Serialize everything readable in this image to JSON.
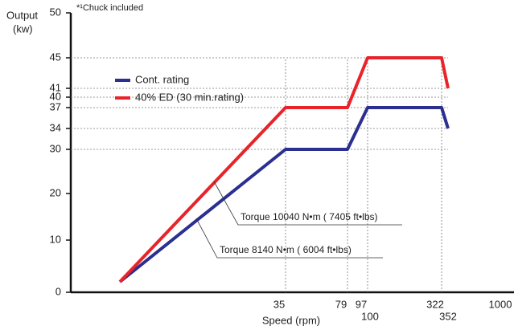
{
  "chart_data": {
    "type": "line",
    "ylabel": "Output",
    "ylabel_unit": "(kw)",
    "xlabel": "Speed (rpm)",
    "note": "*¹Chuck included",
    "xlim": [
      0,
      1000
    ],
    "xticks": [
      35,
      79,
      97,
      100,
      322,
      352,
      1000
    ],
    "ylim": [
      0,
      50
    ],
    "yticks": [
      0,
      10,
      20,
      30,
      34,
      37,
      40,
      41,
      45,
      50
    ],
    "legend": "upper left",
    "series": [
      {
        "name": "Cont. rating",
        "color": "#2b2f8f",
        "x": [
          8,
          35,
          79,
          97,
          322,
          352
        ],
        "values": [
          2,
          30,
          30,
          37,
          37,
          34
        ]
      },
      {
        "name": "40% ED (30 min.rating)",
        "color": "#e8242a",
        "x": [
          8,
          35,
          79,
          97,
          322,
          352
        ],
        "values": [
          2,
          37,
          37,
          45,
          45,
          41
        ]
      }
    ],
    "annotations": [
      "Torque 10040 N•m ( 7405 ft•lbs)",
      "Torque 8140 N•m ( 6004 ft•lbs)"
    ]
  }
}
